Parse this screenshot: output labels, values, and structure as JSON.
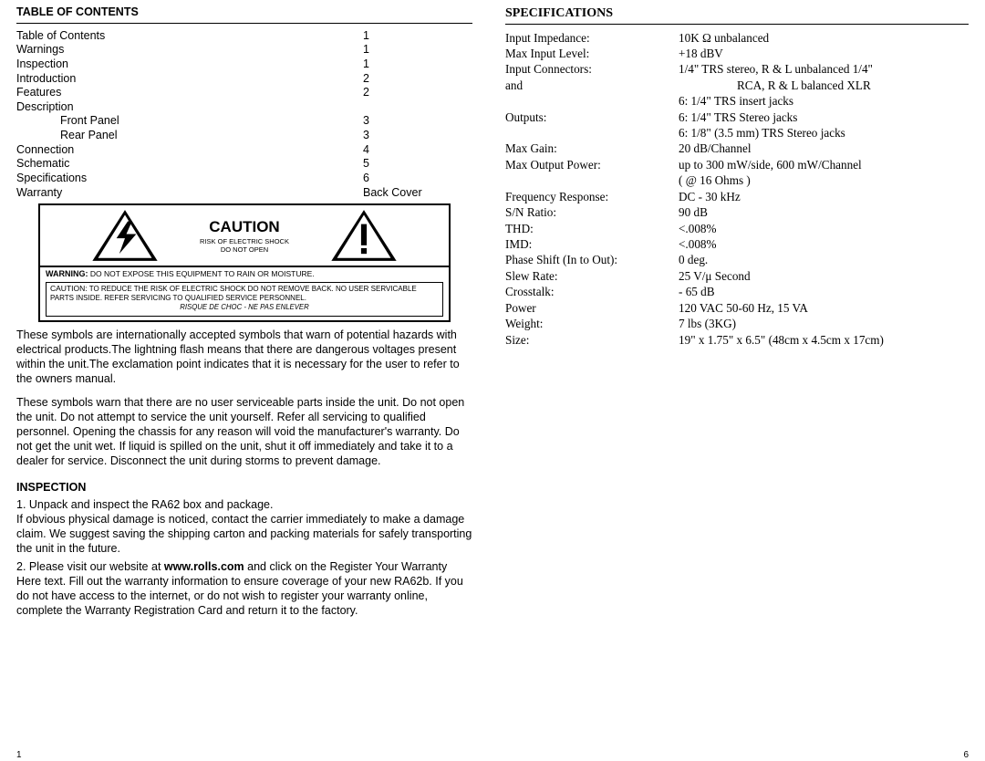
{
  "left": {
    "toc_heading": "TABLE OF CONTENTS",
    "toc": [
      {
        "label": "Table of Contents",
        "page": "1",
        "indent": false
      },
      {
        "label": "Warnings",
        "page": "1",
        "indent": false
      },
      {
        "label": "Inspection",
        "page": "1",
        "indent": false
      },
      {
        "label": "Introduction",
        "page": "2",
        "indent": false
      },
      {
        "label": "Features",
        "page": "2",
        "indent": false
      },
      {
        "label": "Description",
        "page": "",
        "indent": false
      },
      {
        "label": "Front Panel",
        "page": "3",
        "indent": true
      },
      {
        "label": "Rear Panel",
        "page": "3",
        "indent": true
      },
      {
        "label": "Connection",
        "page": "4",
        "indent": false
      },
      {
        "label": "Schematic",
        "page": "5",
        "indent": false
      },
      {
        "label": "Specifications",
        "page": "6",
        "indent": false
      },
      {
        "label": "Warranty",
        "page": "Back Cover",
        "indent": false
      }
    ],
    "caution": {
      "title": "CAUTION",
      "sub1": "RISK OF ELECTRIC SHOCK",
      "sub2": "DO NOT OPEN",
      "warn_lead": "WARNING:",
      "warn_text": "DO NOT EXPOSE THIS EQUIPMENT TO RAIN OR MOISTURE.",
      "inner_lead": "CAUTION:",
      "inner_text": "TO REDUCE THE RISK OF ELECTRIC SHOCK DO NOT REMOVE BACK. NO USER SERVICABLE PARTS INSIDE. REFER SERVICING TO QUALIFIED SERVICE PERSONNEL.",
      "risque": "RISQUE DE CHOC - NE PAS ENLEVER"
    },
    "para1": "These symbols are internationally accepted symbols that warn of potential hazards with electrical products.The lightning flash means that there are dangerous voltages present within the unit.The exclamation point indicates that it is necessary for the user to refer to the owners manual.",
    "para2": "These symbols warn that there are no user serviceable parts inside the unit. Do not open the unit. Do not attempt to service the unit yourself. Refer all servicing to qualified personnel. Opening the chassis for any reason will void the manufacturer's warranty. Do not get the unit wet. If liquid is spilled on the unit, shut it off immediately and take it to a dealer for service. Disconnect the unit during storms to prevent damage.",
    "inspection_heading": "INSPECTION",
    "insp1": "1. Unpack and inspect the RA62 box and package.\nIf obvious physical damage is noticed, contact the carrier immediately to make a damage claim. We suggest saving the shipping carton and packing materials for safely transporting the unit in the future.",
    "insp2_a": "2. Please visit our website at ",
    "insp2_url": "www.rolls.com",
    "insp2_b": " and click on the Register Your Warranty Here text. Fill out the warranty information to ensure coverage of your new RA62b. If you do not have access to the internet, or do not wish to register your warranty online, complete the Warranty Registration Card and return it to the factory.",
    "pagenum": "1"
  },
  "right": {
    "spec_heading": "SPECIFICATIONS",
    "rows": [
      {
        "k": "Input Impedance:",
        "v": "10K Ω unbalanced"
      },
      {
        "k": "Max Input Level:",
        "v": "+18 dBV"
      },
      {
        "k": "Input Connectors:",
        "v": "1/4\" TRS stereo, R & L unbalanced 1/4\""
      },
      {
        "k": "and",
        "v": "RCA, R & L balanced XLR",
        "indent": true
      },
      {
        "k": "",
        "v": "6: 1/4\" TRS insert jacks"
      },
      {
        "k": "Outputs:",
        "v": "6: 1/4\" TRS Stereo jacks"
      },
      {
        "k": "",
        "v": "6: 1/8\" (3.5 mm) TRS Stereo jacks"
      },
      {
        "k": "Max Gain:",
        "v": "20 dB/Channel"
      },
      {
        "k": "Max Output Power:",
        "v": "up to 300 mW/side, 600 mW/Channel"
      },
      {
        "k": "",
        "v": "( @ 16 Ohms )"
      },
      {
        "k": "Frequency Response:",
        "v": "DC - 30 kHz"
      },
      {
        "k": "S/N Ratio:",
        "v": "90 dB"
      },
      {
        "k": "THD:",
        "v": "<.008%"
      },
      {
        "k": "IMD:",
        "v": "<.008%"
      },
      {
        "k": "Phase Shift (In to Out):",
        "v": "0 deg."
      },
      {
        "k": "Slew Rate:",
        "v": "25 V/μ Second"
      },
      {
        "k": "Crosstalk:",
        "v": "- 65 dB"
      },
      {
        "k": "Power",
        "v": "120 VAC 50-60 Hz, 15 VA"
      },
      {
        "k": "Weight:",
        "v": "7 lbs (3KG)"
      },
      {
        "k": "Size:",
        "v": "19\" x 1.75\" x 6.5\" (48cm x 4.5cm x 17cm)"
      }
    ],
    "pagenum": "6"
  }
}
